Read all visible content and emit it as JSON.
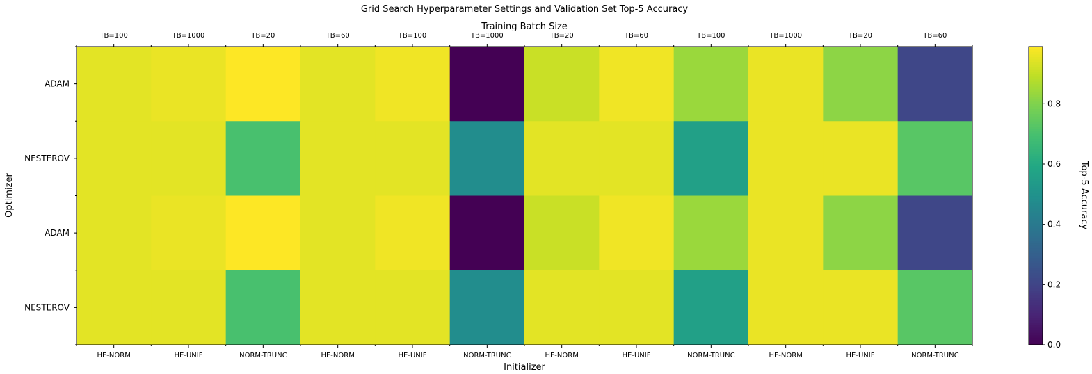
{
  "chart_data": {
    "type": "heatmap",
    "title": "Grid Search Hyperparameter Settings and Validation Set Top-5 Accuracy",
    "xlabel": "Initializer",
    "x2label": "Training Batch Size",
    "ylabel": "Optimizer",
    "x_categories": [
      "HE-NORM",
      "HE-UNIF",
      "NORM-TRUNC",
      "HE-NORM",
      "HE-UNIF",
      "NORM-TRUNC",
      "HE-NORM",
      "HE-UNIF",
      "NORM-TRUNC",
      "HE-NORM",
      "HE-UNIF",
      "NORM-TRUNC"
    ],
    "x2_categories": [
      "TB=100",
      "TB=1000",
      "TB=20",
      "TB=60",
      "TB=100",
      "TB=1000",
      "TB=20",
      "TB=60",
      "TB=100",
      "TB=1000",
      "TB=20",
      "TB=60"
    ],
    "y_categories": [
      "ADAM",
      "NESTEROV",
      "ADAM",
      "NESTEROV"
    ],
    "values": [
      [
        0.95,
        0.96,
        0.99,
        0.95,
        0.97,
        0.0,
        0.91,
        0.97,
        0.84,
        0.96,
        0.82,
        0.21
      ],
      [
        0.95,
        0.95,
        0.7,
        0.95,
        0.95,
        0.48,
        0.95,
        0.95,
        0.56,
        0.96,
        0.96,
        0.73
      ],
      [
        0.95,
        0.96,
        0.99,
        0.95,
        0.97,
        0.0,
        0.91,
        0.97,
        0.84,
        0.96,
        0.82,
        0.21
      ],
      [
        0.95,
        0.95,
        0.7,
        0.95,
        0.95,
        0.48,
        0.95,
        0.95,
        0.56,
        0.96,
        0.96,
        0.73
      ]
    ],
    "colorbar": {
      "label": "Top-5 Accuracy",
      "range": [
        0,
        0.99
      ],
      "ticks": [
        0.0,
        0.2,
        0.4,
        0.6,
        0.8
      ],
      "tick_labels": [
        "0.0",
        "0.2",
        "0.4",
        "0.6",
        "0.8"
      ],
      "colormap": "viridis"
    },
    "grid": false
  }
}
